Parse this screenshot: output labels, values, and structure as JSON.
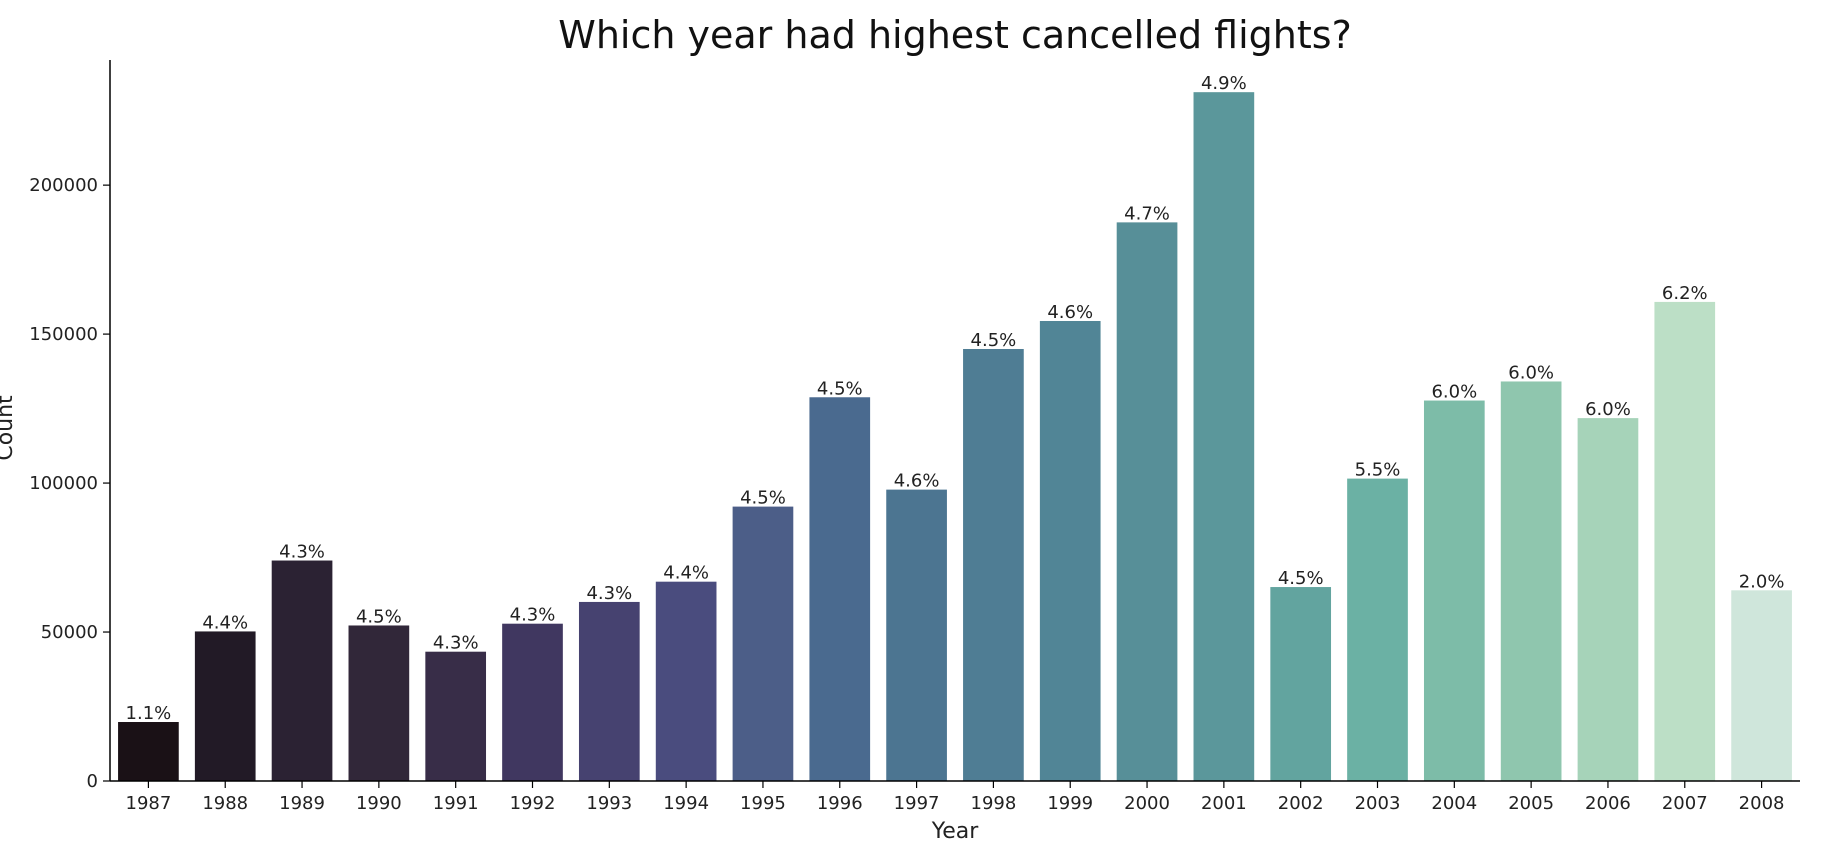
{
  "chart_data": {
    "type": "bar",
    "title": "Which year had highest cancelled flights?",
    "xlabel": "Year",
    "ylabel": "Count",
    "categories": [
      "1987",
      "1988",
      "1989",
      "1990",
      "1991",
      "1992",
      "1993",
      "1994",
      "1995",
      "1996",
      "1997",
      "1998",
      "1999",
      "2000",
      "2001",
      "2002",
      "2003",
      "2004",
      "2005",
      "2006",
      "2007",
      "2008"
    ],
    "values": [
      19800,
      50200,
      74000,
      52200,
      43400,
      52800,
      60100,
      66900,
      92100,
      128800,
      97800,
      145000,
      154400,
      187500,
      231200,
      65100,
      101500,
      127700,
      134100,
      121800,
      160800,
      64000
    ],
    "data_labels": [
      "1.1%",
      "4.4%",
      "4.3%",
      "4.5%",
      "4.3%",
      "4.3%",
      "4.3%",
      "4.4%",
      "4.5%",
      "4.5%",
      "4.6%",
      "4.5%",
      "4.6%",
      "4.7%",
      "4.9%",
      "4.5%",
      "5.5%",
      "6.0%",
      "6.0%",
      "6.0%",
      "6.2%",
      "2.0%"
    ],
    "colors": [
      "#1a1116",
      "#221a26",
      "#2b2233",
      "#312739",
      "#382d48",
      "#403760",
      "#464270",
      "#4a4c7e",
      "#4c5e88",
      "#4a6a8f",
      "#4c7591",
      "#4f7d94",
      "#518596",
      "#578f98",
      "#5b979b",
      "#62a49f",
      "#6bb1a4",
      "#7dbca8",
      "#8fc6ae",
      "#a6d3b9",
      "#bcdfc6",
      "#cfe6db"
    ],
    "yticks": [
      0,
      50000,
      100000,
      150000,
      200000
    ],
    "ytick_labels": [
      "0",
      "50000",
      "100000",
      "150000",
      "200000"
    ],
    "ylim": [
      0,
      242000
    ],
    "grid": false,
    "legend": "none"
  }
}
